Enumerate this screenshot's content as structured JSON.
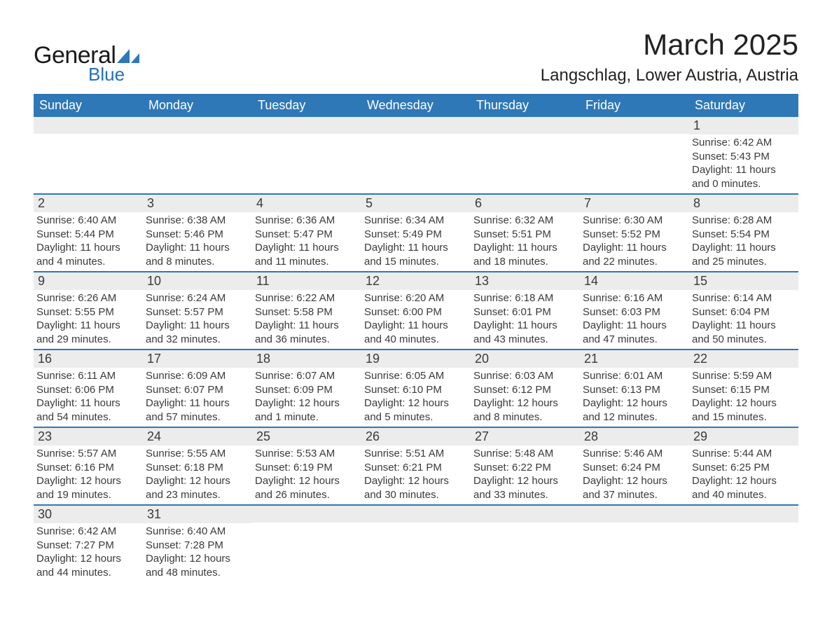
{
  "brand": {
    "word1": "General",
    "word2": "Blue",
    "shape_color": "#2f78b7"
  },
  "title": "March 2025",
  "location": "Langschlag, Lower Austria, Austria",
  "colors": {
    "header_bg": "#2f78b7",
    "header_text": "#ffffff",
    "band_bg": "#ececec",
    "week_divider": "#2f78b7",
    "body_text": "#3a3a3a"
  },
  "typography": {
    "title_fontsize": 42,
    "location_fontsize": 24,
    "dow_fontsize": 18,
    "daynum_fontsize": 18,
    "body_fontsize": 15
  },
  "day_headers": [
    "Sunday",
    "Monday",
    "Tuesday",
    "Wednesday",
    "Thursday",
    "Friday",
    "Saturday"
  ],
  "weeks": [
    [
      {
        "n": "",
        "sunrise": "",
        "sunset": "",
        "daylight": ""
      },
      {
        "n": "",
        "sunrise": "",
        "sunset": "",
        "daylight": ""
      },
      {
        "n": "",
        "sunrise": "",
        "sunset": "",
        "daylight": ""
      },
      {
        "n": "",
        "sunrise": "",
        "sunset": "",
        "daylight": ""
      },
      {
        "n": "",
        "sunrise": "",
        "sunset": "",
        "daylight": ""
      },
      {
        "n": "",
        "sunrise": "",
        "sunset": "",
        "daylight": ""
      },
      {
        "n": "1",
        "sunrise": "6:42 AM",
        "sunset": "5:43 PM",
        "daylight": "11 hours and 0 minutes."
      }
    ],
    [
      {
        "n": "2",
        "sunrise": "6:40 AM",
        "sunset": "5:44 PM",
        "daylight": "11 hours and 4 minutes."
      },
      {
        "n": "3",
        "sunrise": "6:38 AM",
        "sunset": "5:46 PM",
        "daylight": "11 hours and 8 minutes."
      },
      {
        "n": "4",
        "sunrise": "6:36 AM",
        "sunset": "5:47 PM",
        "daylight": "11 hours and 11 minutes."
      },
      {
        "n": "5",
        "sunrise": "6:34 AM",
        "sunset": "5:49 PM",
        "daylight": "11 hours and 15 minutes."
      },
      {
        "n": "6",
        "sunrise": "6:32 AM",
        "sunset": "5:51 PM",
        "daylight": "11 hours and 18 minutes."
      },
      {
        "n": "7",
        "sunrise": "6:30 AM",
        "sunset": "5:52 PM",
        "daylight": "11 hours and 22 minutes."
      },
      {
        "n": "8",
        "sunrise": "6:28 AM",
        "sunset": "5:54 PM",
        "daylight": "11 hours and 25 minutes."
      }
    ],
    [
      {
        "n": "9",
        "sunrise": "6:26 AM",
        "sunset": "5:55 PM",
        "daylight": "11 hours and 29 minutes."
      },
      {
        "n": "10",
        "sunrise": "6:24 AM",
        "sunset": "5:57 PM",
        "daylight": "11 hours and 32 minutes."
      },
      {
        "n": "11",
        "sunrise": "6:22 AM",
        "sunset": "5:58 PM",
        "daylight": "11 hours and 36 minutes."
      },
      {
        "n": "12",
        "sunrise": "6:20 AM",
        "sunset": "6:00 PM",
        "daylight": "11 hours and 40 minutes."
      },
      {
        "n": "13",
        "sunrise": "6:18 AM",
        "sunset": "6:01 PM",
        "daylight": "11 hours and 43 minutes."
      },
      {
        "n": "14",
        "sunrise": "6:16 AM",
        "sunset": "6:03 PM",
        "daylight": "11 hours and 47 minutes."
      },
      {
        "n": "15",
        "sunrise": "6:14 AM",
        "sunset": "6:04 PM",
        "daylight": "11 hours and 50 minutes."
      }
    ],
    [
      {
        "n": "16",
        "sunrise": "6:11 AM",
        "sunset": "6:06 PM",
        "daylight": "11 hours and 54 minutes."
      },
      {
        "n": "17",
        "sunrise": "6:09 AM",
        "sunset": "6:07 PM",
        "daylight": "11 hours and 57 minutes."
      },
      {
        "n": "18",
        "sunrise": "6:07 AM",
        "sunset": "6:09 PM",
        "daylight": "12 hours and 1 minute."
      },
      {
        "n": "19",
        "sunrise": "6:05 AM",
        "sunset": "6:10 PM",
        "daylight": "12 hours and 5 minutes."
      },
      {
        "n": "20",
        "sunrise": "6:03 AM",
        "sunset": "6:12 PM",
        "daylight": "12 hours and 8 minutes."
      },
      {
        "n": "21",
        "sunrise": "6:01 AM",
        "sunset": "6:13 PM",
        "daylight": "12 hours and 12 minutes."
      },
      {
        "n": "22",
        "sunrise": "5:59 AM",
        "sunset": "6:15 PM",
        "daylight": "12 hours and 15 minutes."
      }
    ],
    [
      {
        "n": "23",
        "sunrise": "5:57 AM",
        "sunset": "6:16 PM",
        "daylight": "12 hours and 19 minutes."
      },
      {
        "n": "24",
        "sunrise": "5:55 AM",
        "sunset": "6:18 PM",
        "daylight": "12 hours and 23 minutes."
      },
      {
        "n": "25",
        "sunrise": "5:53 AM",
        "sunset": "6:19 PM",
        "daylight": "12 hours and 26 minutes."
      },
      {
        "n": "26",
        "sunrise": "5:51 AM",
        "sunset": "6:21 PM",
        "daylight": "12 hours and 30 minutes."
      },
      {
        "n": "27",
        "sunrise": "5:48 AM",
        "sunset": "6:22 PM",
        "daylight": "12 hours and 33 minutes."
      },
      {
        "n": "28",
        "sunrise": "5:46 AM",
        "sunset": "6:24 PM",
        "daylight": "12 hours and 37 minutes."
      },
      {
        "n": "29",
        "sunrise": "5:44 AM",
        "sunset": "6:25 PM",
        "daylight": "12 hours and 40 minutes."
      }
    ],
    [
      {
        "n": "30",
        "sunrise": "6:42 AM",
        "sunset": "7:27 PM",
        "daylight": "12 hours and 44 minutes."
      },
      {
        "n": "31",
        "sunrise": "6:40 AM",
        "sunset": "7:28 PM",
        "daylight": "12 hours and 48 minutes."
      },
      {
        "n": "",
        "sunrise": "",
        "sunset": "",
        "daylight": ""
      },
      {
        "n": "",
        "sunrise": "",
        "sunset": "",
        "daylight": ""
      },
      {
        "n": "",
        "sunrise": "",
        "sunset": "",
        "daylight": ""
      },
      {
        "n": "",
        "sunrise": "",
        "sunset": "",
        "daylight": ""
      },
      {
        "n": "",
        "sunrise": "",
        "sunset": "",
        "daylight": ""
      }
    ]
  ],
  "labels": {
    "sunrise": "Sunrise:",
    "sunset": "Sunset:",
    "daylight": "Daylight:"
  }
}
